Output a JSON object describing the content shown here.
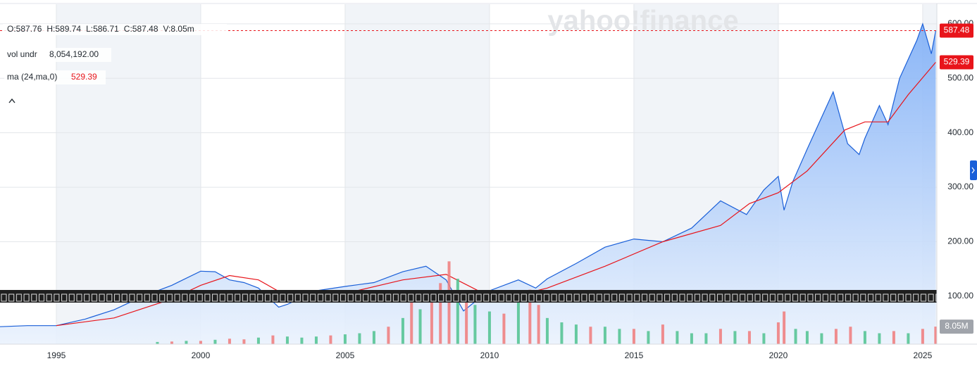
{
  "chart_data": {
    "type": "line",
    "watermark": "yahoo!finance",
    "header": [
      "O:587.76",
      "H:589.74",
      "L:586.71",
      "C:587.48",
      "V:8.05m"
    ],
    "xlim": [
      1993.05,
      2025.49
    ],
    "xticks": [
      1995,
      2000,
      2005,
      2010,
      2015,
      2020,
      2025
    ],
    "ylim": [
      12,
      636
    ],
    "yticks": [
      {
        "value": 100,
        "label": "100.00"
      },
      {
        "value": 200,
        "label": "200.00"
      },
      {
        "value": 300,
        "label": "300.00"
      },
      {
        "value": 400,
        "label": "400.00"
      },
      {
        "value": 500,
        "label": "500.00"
      },
      {
        "value": 600,
        "label": "600.00"
      }
    ],
    "grid": true,
    "series": [
      {
        "color": "#1a5fd8",
        "x": [
          1993.05,
          1994,
          1995,
          1996,
          1997,
          1998,
          1999,
          2000,
          2000.5,
          2001,
          2001.5,
          2002,
          2002.7,
          2003,
          2004,
          2005,
          2006,
          2007,
          2007.8,
          2008.5,
          2009.1,
          2009.5,
          2010,
          2011,
          2011.6,
          2012,
          2013,
          2014,
          2015,
          2016,
          2017,
          2018,
          2018.9,
          2019.5,
          2020,
          2020.2,
          2020.5,
          2021,
          2021.9,
          2022.4,
          2022.8,
          2023,
          2023.5,
          2023.8,
          2024.2,
          2024.8,
          2025,
          2025.3,
          2025.45
        ],
        "values": [
          44,
          46,
          46,
          58,
          75,
          100,
          120,
          146,
          145,
          130,
          125,
          115,
          80,
          85,
          110,
          118,
          125,
          145,
          155,
          130,
          73,
          90,
          110,
          130,
          115,
          132,
          160,
          190,
          205,
          200,
          225,
          275,
          250,
          295,
          320,
          258,
          310,
          370,
          475,
          380,
          360,
          390,
          450,
          415,
          500,
          570,
          600,
          545,
          587.48
        ]
      },
      {
        "name": "ma (24,ma,0)",
        "color": "#e8141a",
        "x": [
          1995,
          1997,
          1999,
          2000,
          2001,
          2002,
          2003,
          2004,
          2005,
          2007,
          2008.5,
          2009.8,
          2010.5,
          2012,
          2014,
          2016,
          2018,
          2019,
          2020,
          2021,
          2022.3,
          2023,
          2023.8,
          2024.5,
          2025.45
        ],
        "values": [
          46,
          60,
          95,
          120,
          138,
          130,
          100,
          95,
          105,
          130,
          140,
          105,
          95,
          115,
          155,
          200,
          230,
          270,
          290,
          330,
          405,
          420,
          420,
          470,
          529.39
        ]
      }
    ],
    "volume": {
      "name": "vol undr",
      "total_label": "8,054,192.00",
      "axis": "y2",
      "y2lim": [
        0,
        156
      ],
      "up_color": "#4fc28f",
      "down_color": "#f07a7a",
      "x": [
        1998.5,
        1999,
        1999.5,
        2000,
        2000.5,
        2001,
        2001.5,
        2002,
        2002.5,
        2003,
        2003.5,
        2004,
        2004.5,
        2005,
        2005.5,
        2006,
        2006.5,
        2007,
        2007.3,
        2007.6,
        2008,
        2008.3,
        2008.6,
        2008.9,
        2009.2,
        2009.5,
        2010,
        2010.5,
        2011,
        2011.4,
        2011.7,
        2012,
        2012.5,
        2013,
        2013.5,
        2014,
        2014.5,
        2015,
        2015.5,
        2016,
        2016.5,
        2017,
        2017.5,
        2018,
        2018.5,
        2019,
        2019.5,
        2020,
        2020.2,
        2020.6,
        2021,
        2021.5,
        2022,
        2022.5,
        2023,
        2023.5,
        2024,
        2024.5,
        2025,
        2025.45
      ],
      "values": [
        1,
        1.2,
        1.5,
        1.5,
        2,
        2.5,
        2.2,
        3,
        4,
        3.5,
        3,
        3.5,
        4,
        4.5,
        5,
        6,
        8,
        12,
        20,
        16,
        24,
        28,
        38,
        30,
        22,
        18,
        15,
        14,
        22,
        25,
        18,
        12,
        10,
        9,
        8,
        8,
        7,
        7,
        6,
        9,
        6,
        5,
        5,
        7,
        6,
        6,
        5,
        10,
        15,
        7,
        6,
        5,
        7,
        8,
        6,
        5,
        6,
        5,
        7,
        8.05
      ],
      "down": [
        0,
        1,
        0,
        1,
        0,
        1,
        1,
        0,
        1,
        0,
        0,
        0,
        1,
        0,
        0,
        0,
        1,
        0,
        1,
        0,
        1,
        1,
        1,
        0,
        1,
        0,
        0,
        1,
        0,
        1,
        1,
        0,
        0,
        0,
        1,
        0,
        0,
        1,
        0,
        1,
        0,
        0,
        0,
        1,
        0,
        1,
        0,
        1,
        1,
        0,
        0,
        0,
        1,
        1,
        0,
        0,
        1,
        0,
        1,
        1
      ],
      "last_value_label": "8.05M"
    }
  }
}
